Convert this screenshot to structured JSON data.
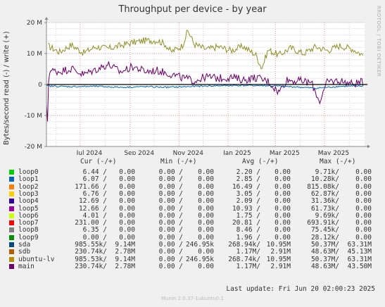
{
  "chart_data": {
    "type": "line",
    "title": "Throughput per device - by year",
    "ylabel": "Bytes/second read (-) / write (+)",
    "ylim": [
      -20000000,
      20000000
    ],
    "y_ticks": [
      {
        "value": 20000000,
        "label": "20 M"
      },
      {
        "value": 10000000,
        "label": "10 M"
      },
      {
        "value": 0,
        "label": "0"
      },
      {
        "value": -10000000,
        "label": "-10 M"
      },
      {
        "value": -20000000,
        "label": "-20 M"
      }
    ],
    "x_range": [
      "2024-05-20",
      "2025-06-20"
    ],
    "x_ticks": [
      {
        "date": "2024-07-01",
        "label": "Jul 2024"
      },
      {
        "date": "2024-09-01",
        "label": "Sep 2024"
      },
      {
        "date": "2024-11-01",
        "label": "Nov 2024"
      },
      {
        "date": "2025-01-01",
        "label": "Jan 2025"
      },
      {
        "date": "2025-03-01",
        "label": "Mar 2025"
      },
      {
        "date": "2025-05-01",
        "label": "May 2025"
      }
    ],
    "grid": true,
    "series": [
      {
        "name": "sdb",
        "color": "#8f8f2a",
        "points": [
          [
            "2024-05-22",
            12500000
          ],
          [
            "2024-06-05",
            10500000
          ],
          [
            "2024-06-20",
            12800000
          ],
          [
            "2024-07-05",
            10200000
          ],
          [
            "2024-07-20",
            12200000
          ],
          [
            "2024-08-05",
            11600000
          ],
          [
            "2024-08-20",
            12600000
          ],
          [
            "2024-09-05",
            13600000
          ],
          [
            "2024-09-20",
            14200000
          ],
          [
            "2024-10-05",
            14200000
          ],
          [
            "2024-10-15",
            13000000
          ],
          [
            "2024-10-22",
            10500000
          ],
          [
            "2024-11-05",
            12500000
          ],
          [
            "2024-11-12",
            17500000
          ],
          [
            "2024-11-20",
            13000000
          ],
          [
            "2024-12-05",
            11300000
          ],
          [
            "2024-12-20",
            12200000
          ],
          [
            "2025-01-05",
            11000000
          ],
          [
            "2025-01-20",
            12300000
          ],
          [
            "2025-02-05",
            9500000
          ],
          [
            "2025-02-12",
            5200000
          ],
          [
            "2025-02-20",
            11200000
          ],
          [
            "2025-03-05",
            9500000
          ],
          [
            "2025-03-20",
            11800000
          ],
          [
            "2025-04-05",
            10000000
          ],
          [
            "2025-04-20",
            12200000
          ],
          [
            "2025-05-05",
            11000000
          ],
          [
            "2025-05-20",
            12500000
          ],
          [
            "2025-06-05",
            11500000
          ],
          [
            "2025-06-18",
            9500000
          ]
        ]
      },
      {
        "name": "main",
        "color": "#660066",
        "points": [
          [
            "2024-05-20",
            -7500000
          ],
          [
            "2024-05-21",
            -14500000
          ],
          [
            "2024-05-23",
            4500000
          ],
          [
            "2024-06-05",
            4200000
          ],
          [
            "2024-06-20",
            5200000
          ],
          [
            "2024-07-05",
            3200000
          ],
          [
            "2024-07-20",
            4800000
          ],
          [
            "2024-08-05",
            6500000
          ],
          [
            "2024-08-20",
            4000000
          ],
          [
            "2024-09-05",
            5800000
          ],
          [
            "2024-09-20",
            4200000
          ],
          [
            "2024-10-05",
            4500000
          ],
          [
            "2024-10-20",
            3500000
          ],
          [
            "2024-11-05",
            2200000
          ],
          [
            "2024-11-20",
            1200000
          ],
          [
            "2024-12-05",
            2500000
          ],
          [
            "2024-12-20",
            2000000
          ],
          [
            "2025-01-05",
            2300000
          ],
          [
            "2025-01-20",
            1500000
          ],
          [
            "2025-02-05",
            2200000
          ],
          [
            "2025-02-20",
            1000000
          ],
          [
            "2025-03-05",
            -2500000
          ],
          [
            "2025-03-15",
            1500000
          ],
          [
            "2025-04-05",
            1000000
          ],
          [
            "2025-04-15",
            500000
          ],
          [
            "2025-04-25",
            -5500000
          ],
          [
            "2025-05-05",
            1000000
          ],
          [
            "2025-05-20",
            1200000
          ],
          [
            "2025-06-05",
            200000
          ],
          [
            "2025-06-18",
            800000
          ]
        ]
      },
      {
        "name": "sda",
        "color": "#0066b3",
        "points": [
          [
            "2024-05-20",
            -500000
          ],
          [
            "2024-06-20",
            -700000
          ],
          [
            "2024-07-20",
            -600000
          ],
          [
            "2024-08-20",
            -900000
          ],
          [
            "2024-09-20",
            -700000
          ],
          [
            "2024-10-20",
            -900000
          ],
          [
            "2024-11-20",
            -600000
          ],
          [
            "2024-12-20",
            -400000
          ],
          [
            "2025-01-20",
            -300000
          ],
          [
            "2025-02-20",
            -400000
          ],
          [
            "2025-03-20",
            -700000
          ],
          [
            "2025-04-20",
            -1200000
          ],
          [
            "2025-05-20",
            -600000
          ],
          [
            "2025-06-18",
            -500000
          ]
        ]
      }
    ]
  },
  "legend": {
    "headers": {
      "cur": "Cur (-/+)",
      "min": "Min (-/+)",
      "avg": "Avg (-/+)",
      "max": "Max (-/+)"
    },
    "rows": [
      {
        "name": "loop0",
        "color": "#00cc00",
        "cur_r": "6.44 /",
        "cur_w": "0.00",
        "min_r": "0.00 /",
        "min_w": "0.00",
        "avg_r": "2.20 /",
        "avg_w": "0.00",
        "max_r": "9.71k/",
        "max_w": "0.00"
      },
      {
        "name": "loop1",
        "color": "#0066b3",
        "cur_r": "6.07 /",
        "cur_w": "0.00",
        "min_r": "0.00 /",
        "min_w": "0.00",
        "avg_r": "2.85 /",
        "avg_w": "0.00",
        "max_r": "10.28k/",
        "max_w": "0.00"
      },
      {
        "name": "loop2",
        "color": "#ff8000",
        "cur_r": "171.66 /",
        "cur_w": "0.00",
        "min_r": "0.00 /",
        "min_w": "0.00",
        "avg_r": "16.49 /",
        "avg_w": "0.00",
        "max_r": "815.08k/",
        "max_w": "0.00"
      },
      {
        "name": "loop3",
        "color": "#ffcc00",
        "cur_r": "6.76 /",
        "cur_w": "0.00",
        "min_r": "0.00 /",
        "min_w": "0.00",
        "avg_r": "3.05 /",
        "avg_w": "0.00",
        "max_r": "62.87k/",
        "max_w": "0.00"
      },
      {
        "name": "loop4",
        "color": "#330099",
        "cur_r": "12.69 /",
        "cur_w": "0.00",
        "min_r": "0.00 /",
        "min_w": "0.00",
        "avg_r": "2.09 /",
        "avg_w": "0.00",
        "max_r": "31.36k/",
        "max_w": "0.00"
      },
      {
        "name": "loop5",
        "color": "#990099",
        "cur_r": "12.66 /",
        "cur_w": "0.00",
        "min_r": "0.00 /",
        "min_w": "0.00",
        "avg_r": "10.93 /",
        "avg_w": "0.00",
        "max_r": "61.73k/",
        "max_w": "0.00"
      },
      {
        "name": "loop6",
        "color": "#ccff00",
        "cur_r": "4.01 /",
        "cur_w": "0.00",
        "min_r": "0.00 /",
        "min_w": "0.00",
        "avg_r": "1.75 /",
        "avg_w": "0.00",
        "max_r": "9.69k/",
        "max_w": "0.00"
      },
      {
        "name": "loop7",
        "color": "#ff0000",
        "cur_r": "231.00 /",
        "cur_w": "0.00",
        "min_r": "0.00 /",
        "min_w": "0.00",
        "avg_r": "20.81 /",
        "avg_w": "0.00",
        "max_r": "693.91k/",
        "max_w": "0.00"
      },
      {
        "name": "loop8",
        "color": "#808080",
        "cur_r": "6.35 /",
        "cur_w": "0.00",
        "min_r": "0.00 /",
        "min_w": "0.00",
        "avg_r": "8.46 /",
        "avg_w": "0.00",
        "max_r": "75.45k/",
        "max_w": "0.00"
      },
      {
        "name": "loop9",
        "color": "#008f00",
        "cur_r": "0.00 /",
        "cur_w": "0.00",
        "min_r": "0.00 /",
        "min_w": "0.00",
        "avg_r": "1.96 /",
        "avg_w": "0.00",
        "max_r": "28.12k/",
        "max_w": "0.00"
      },
      {
        "name": "sda",
        "color": "#00487d",
        "cur_r": "985.55k/",
        "cur_w": "9.14M",
        "min_r": "0.00 /",
        "min_w": "246.95k",
        "avg_r": "268.94k/",
        "avg_w": "10.95M",
        "max_r": "50.37M/",
        "max_w": "63.31M"
      },
      {
        "name": "sdb",
        "color": "#b35a00",
        "cur_r": "230.74k/",
        "cur_w": "2.78M",
        "min_r": "0.00 /",
        "min_w": "0.00",
        "avg_r": "1.17M/",
        "avg_w": "2.91M",
        "max_r": "48.63M/",
        "max_w": "45.13M"
      },
      {
        "name": "ubuntu-lv",
        "color": "#b38f00",
        "cur_r": "985.53k/",
        "cur_w": "9.14M",
        "min_r": "0.00 /",
        "min_w": "246.95k",
        "avg_r": "268.74k/",
        "avg_w": "10.95M",
        "max_r": "50.37M/",
        "max_w": "63.31M"
      },
      {
        "name": "main",
        "color": "#6b006b",
        "cur_r": "230.74k/",
        "cur_w": "2.78M",
        "min_r": "0.00 /",
        "min_w": "0.00",
        "avg_r": "1.17M/",
        "avg_w": "2.91M",
        "max_r": "48.63M/",
        "max_w": "43.50M"
      }
    ]
  },
  "watermark": "RRDTOOL / TOBI OETIKER",
  "last_update": "Last update:  Fri Jun 20 02:00:23 2025",
  "footer": "Munin 2.0.37-1ubuntu0.1"
}
